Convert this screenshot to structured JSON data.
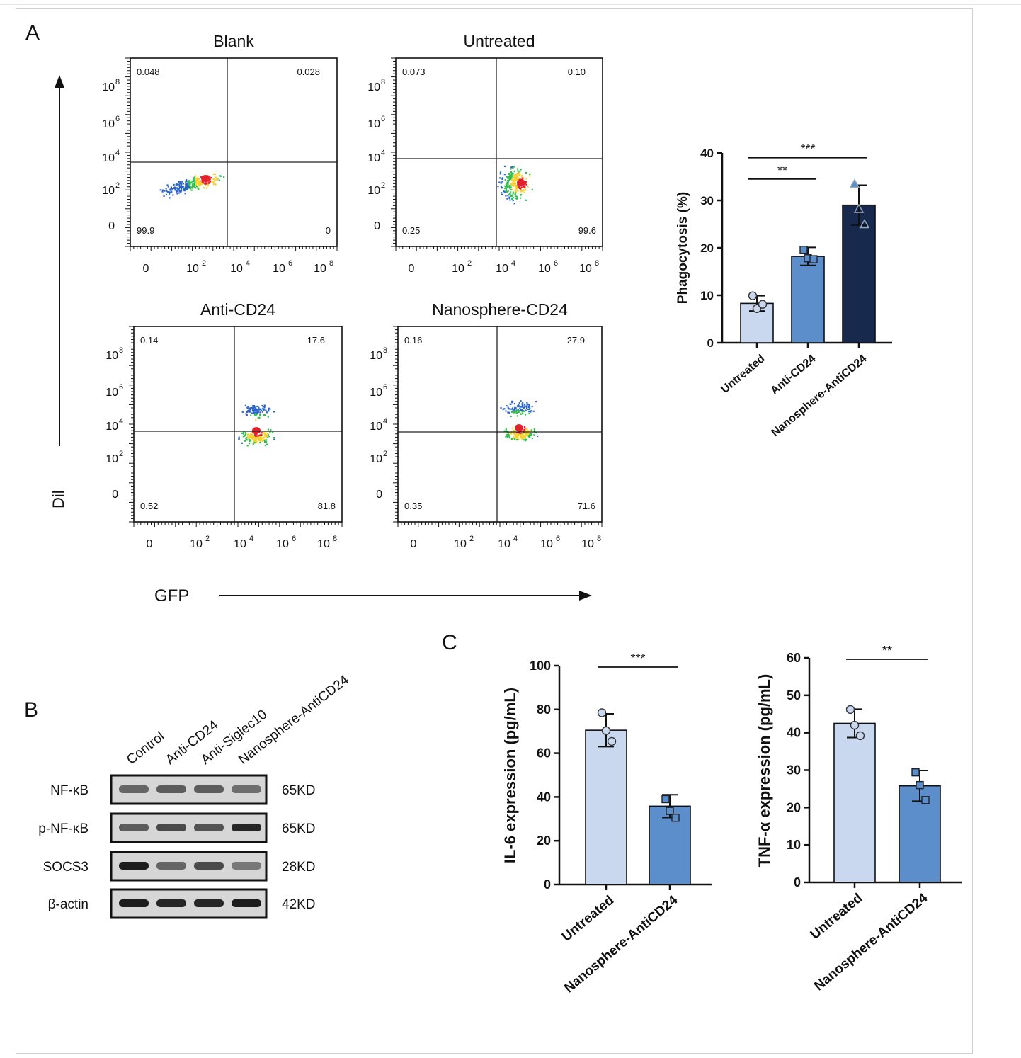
{
  "panel_labels": {
    "a": "A",
    "b": "B",
    "c": "C"
  },
  "flow": {
    "y_axis_label": "Dil",
    "x_axis_label": "GFP",
    "tick_labels": [
      "0",
      "10",
      "10",
      "10",
      "10"
    ],
    "tick_exponents": [
      "",
      "2",
      "4",
      "6",
      "8"
    ],
    "plots": [
      {
        "title": "Blank",
        "q_ul": "0.048",
        "q_ur": "0.028",
        "q_ll": "99.9",
        "q_lr": "0"
      },
      {
        "title": "Untreated",
        "q_ul": "0.073",
        "q_ur": "0.10",
        "q_ll": "0.25",
        "q_lr": "99.6"
      },
      {
        "title": "Anti-CD24",
        "q_ul": "0.14",
        "q_ur": "17.6",
        "q_ll": "0.52",
        "q_lr": "81.8"
      },
      {
        "title": "Nanosphere-CD24",
        "q_ul": "0.16",
        "q_ur": "27.9",
        "q_ll": "0.35",
        "q_lr": "71.6"
      }
    ]
  },
  "western": {
    "lanes": [
      "Control",
      "Anti-CD24",
      "Anti-Siglec10",
      "Nanosphere-AntiCD24"
    ],
    "rows": [
      {
        "label": "NF-κB",
        "size": "65KD",
        "intensity": [
          0.55,
          0.6,
          0.6,
          0.5
        ]
      },
      {
        "label": "p-NF-κB",
        "size": "65KD",
        "intensity": [
          0.6,
          0.7,
          0.65,
          0.9
        ]
      },
      {
        "label": "SOCS3",
        "size": "28KD",
        "intensity": [
          0.95,
          0.55,
          0.7,
          0.45
        ]
      },
      {
        "label": "β-actin",
        "size": "42KD",
        "intensity": [
          0.95,
          0.9,
          0.9,
          0.95
        ]
      }
    ]
  },
  "chart_data": [
    {
      "type": "bar",
      "title": "",
      "ylabel": "Phagocytosis (%)",
      "xlabel": "",
      "categories": [
        "Untreated",
        "Anti-CD24",
        "Nanosphere-AntiCD24"
      ],
      "values": [
        8.3,
        18.2,
        29.0
      ],
      "errors": [
        1.6,
        1.9,
        4.2
      ],
      "points": [
        [
          9.9,
          7.2,
          8.1
        ],
        [
          19.6,
          17.8,
          17.6
        ],
        [
          33.5,
          28.2,
          25.0
        ]
      ],
      "marker": [
        "circle",
        "square",
        "triangle"
      ],
      "colors": [
        "#c9d8ef",
        "#5b8ecb",
        "#172a4d"
      ],
      "ylim": [
        0,
        40
      ],
      "yticks": [
        "0",
        "10",
        "20",
        "30",
        "40"
      ],
      "significance": [
        {
          "from": 0,
          "to": 1,
          "label": "**"
        },
        {
          "from": 0,
          "to": 2,
          "label": "***"
        }
      ]
    },
    {
      "type": "bar",
      "title": "",
      "ylabel": "IL-6 expression (pg/mL)",
      "xlabel": "",
      "categories": [
        "Untreated",
        "Nanosphere-AntiCD24"
      ],
      "values": [
        70.5,
        35.8
      ],
      "errors": [
        7.5,
        5.2
      ],
      "points": [
        [
          78.5,
          70.3,
          65.4
        ],
        [
          39.0,
          33.6,
          30.5
        ]
      ],
      "marker": [
        "circle",
        "square"
      ],
      "colors": [
        "#c9d8ef",
        "#5b8ecb"
      ],
      "ylim": [
        0,
        100
      ],
      "yticks": [
        "0",
        "20",
        "40",
        "60",
        "80",
        "100"
      ],
      "significance": [
        {
          "from": 0,
          "to": 1,
          "label": "***"
        }
      ]
    },
    {
      "type": "bar",
      "title": "",
      "ylabel": "TNF-α expression (pg/mL)",
      "xlabel": "",
      "categories": [
        "Untreated",
        "Nanosphere-AntiCD24"
      ],
      "values": [
        42.5,
        25.8
      ],
      "errors": [
        3.8,
        4.1
      ],
      "points": [
        [
          46.2,
          42.0,
          39.2
        ],
        [
          29.4,
          26.0,
          22.0
        ]
      ],
      "marker": [
        "circle",
        "square"
      ],
      "colors": [
        "#c9d8ef",
        "#5b8ecb"
      ],
      "ylim": [
        0,
        60
      ],
      "yticks": [
        "0",
        "10",
        "20",
        "30",
        "40",
        "50",
        "60"
      ],
      "significance": [
        {
          "from": 0,
          "to": 1,
          "label": "**"
        }
      ]
    }
  ]
}
